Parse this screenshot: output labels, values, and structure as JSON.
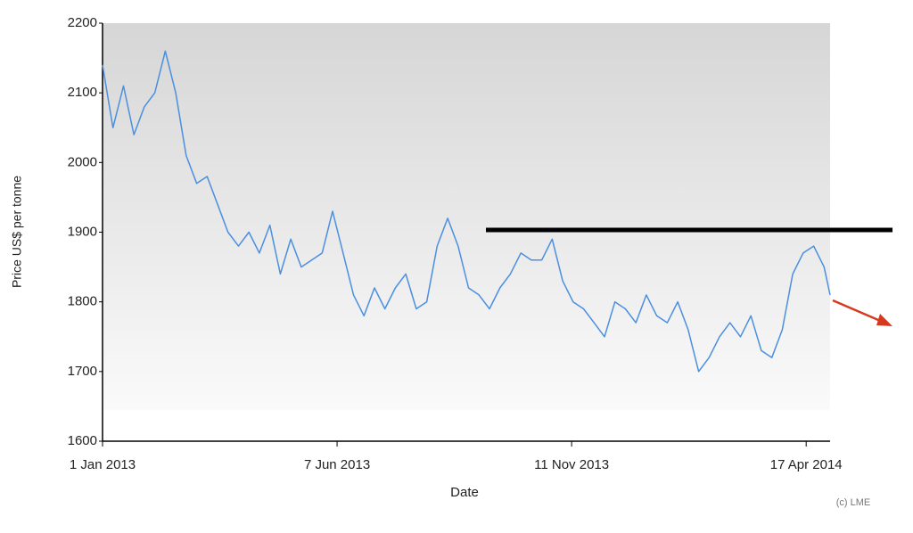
{
  "chart_data": {
    "type": "line",
    "x_label": "Date",
    "y_label": "Price US$ per tonne",
    "annotations": [
      "(c) LME"
    ],
    "xlim": [
      "2013-01-01",
      "2014-05-03"
    ],
    "xticks": [
      {
        "value": "2013-01-01",
        "label": "1 Jan 2013"
      },
      {
        "value": "2013-06-07",
        "label": "7 Jun 2013"
      },
      {
        "value": "2013-11-11",
        "label": "11 Nov 2013"
      },
      {
        "value": "2014-04-17",
        "label": "17 Apr 2014"
      }
    ],
    "ylim": [
      1600,
      2200
    ],
    "yticks": [
      1600,
      1700,
      1800,
      1900,
      2000,
      2100,
      2200
    ],
    "grid": false,
    "x": [
      "2013-01-01",
      "2013-01-08",
      "2013-01-15",
      "2013-01-22",
      "2013-01-29",
      "2013-02-05",
      "2013-02-12",
      "2013-02-19",
      "2013-02-26",
      "2013-03-05",
      "2013-03-12",
      "2013-03-19",
      "2013-03-26",
      "2013-04-02",
      "2013-04-09",
      "2013-04-16",
      "2013-04-23",
      "2013-04-30",
      "2013-05-07",
      "2013-05-14",
      "2013-05-21",
      "2013-05-28",
      "2013-06-04",
      "2013-06-11",
      "2013-06-18",
      "2013-06-25",
      "2013-07-02",
      "2013-07-09",
      "2013-07-16",
      "2013-07-23",
      "2013-07-30",
      "2013-08-06",
      "2013-08-13",
      "2013-08-20",
      "2013-08-27",
      "2013-09-03",
      "2013-09-10",
      "2013-09-17",
      "2013-09-24",
      "2013-10-01",
      "2013-10-08",
      "2013-10-15",
      "2013-10-22",
      "2013-10-29",
      "2013-11-05",
      "2013-11-12",
      "2013-11-19",
      "2013-11-26",
      "2013-12-03",
      "2013-12-10",
      "2013-12-17",
      "2013-12-24",
      "2013-12-31",
      "2014-01-07",
      "2014-01-14",
      "2014-01-21",
      "2014-01-28",
      "2014-02-04",
      "2014-02-11",
      "2014-02-18",
      "2014-02-25",
      "2014-03-04",
      "2014-03-11",
      "2014-03-18",
      "2014-03-25",
      "2014-04-01",
      "2014-04-08",
      "2014-04-15",
      "2014-04-22",
      "2014-04-29",
      "2014-05-03"
    ],
    "series": [
      {
        "name": "Price",
        "color": "#4a8fe0",
        "values": [
          2140,
          2050,
          2110,
          2040,
          2080,
          2100,
          2160,
          2100,
          2010,
          1970,
          1980,
          1940,
          1900,
          1880,
          1900,
          1870,
          1910,
          1840,
          1890,
          1850,
          1860,
          1870,
          1930,
          1870,
          1810,
          1780,
          1820,
          1790,
          1820,
          1840,
          1790,
          1800,
          1880,
          1920,
          1880,
          1820,
          1810,
          1790,
          1820,
          1840,
          1870,
          1860,
          1860,
          1890,
          1830,
          1800,
          1790,
          1770,
          1750,
          1800,
          1790,
          1770,
          1810,
          1780,
          1770,
          1800,
          1760,
          1700,
          1720,
          1750,
          1770,
          1750,
          1780,
          1730,
          1720,
          1760,
          1840,
          1870,
          1880,
          1850,
          1810
        ]
      }
    ]
  }
}
